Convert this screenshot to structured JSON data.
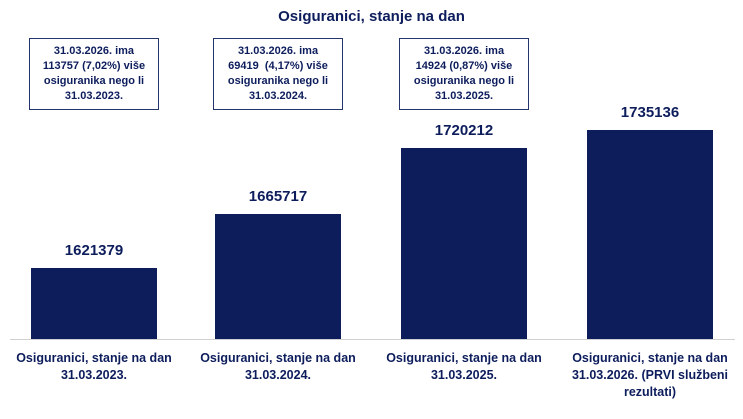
{
  "chart_data": {
    "type": "bar",
    "title": "Osiguranici, stanje na dan",
    "categories": [
      "Osiguranici, stanje na dan\n31.03.2023.",
      "Osiguranici, stanje na dan\n31.03.2024.",
      "Osiguranici, stanje na dan\n31.03.2025.",
      "Osiguranici, stanje na dan\n31.03.2026. (PRVI službeni\nrezultati)"
    ],
    "values": [
      1621379,
      1665717,
      1720212,
      1735136
    ],
    "color": "#0d1d5c",
    "ylim": [
      1562500,
      1750000
    ],
    "annotations": [
      "31.03.2026. ima\n113757 (7,02%) više\nosiguranika nego li\n31.03.2023.",
      "31.03.2026. ima\n69419  (4,17%) više\nosiguranika nego li\n31.03.2024.",
      "31.03.2026. ima\n14924 (0,87%) više\nosiguranika nego li\n31.03.2025."
    ]
  }
}
